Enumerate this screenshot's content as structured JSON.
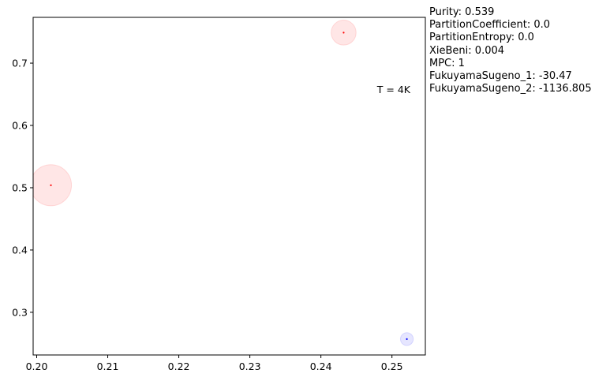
{
  "chart_data": {
    "type": "scatter",
    "title": "",
    "xlabel": "",
    "ylabel": "",
    "xlim": [
      0.1995,
      0.2547
    ],
    "ylim": [
      0.2315,
      0.7735
    ],
    "xticks": [
      "0.20",
      "0.21",
      "0.22",
      "0.23",
      "0.24",
      "0.25"
    ],
    "xtick_values": [
      0.2,
      0.21,
      0.22,
      0.23,
      0.24,
      0.25
    ],
    "yticks": [
      "0.3",
      "0.4",
      "0.5",
      "0.6",
      "0.7"
    ],
    "ytick_values": [
      0.3,
      0.4,
      0.5,
      0.6,
      0.7
    ],
    "grid": false,
    "annotation": "T = 4K",
    "points": [
      {
        "x": 0.202,
        "y": 0.504,
        "radius": 0.033,
        "color": "#ff0000",
        "halo_color": "#ffe6e6"
      },
      {
        "x": 0.2432,
        "y": 0.749,
        "radius": 0.02,
        "color": "#ff0000",
        "halo_color": "#ffe6e6"
      },
      {
        "x": 0.2521,
        "y": 0.257,
        "radius": 0.0103,
        "color": "#0000ff",
        "halo_color": "#e6e6ff"
      }
    ]
  },
  "metrics": [
    "Purity: 0.539",
    "PartitionCoefficient: 0.0",
    "PartitionEntropy: 0.0",
    "XieBeni: 0.004",
    "MPC: 1",
    "FukuyamaSugeno_1: -30.47",
    "FukuyamaSugeno_2: -1136.805"
  ]
}
